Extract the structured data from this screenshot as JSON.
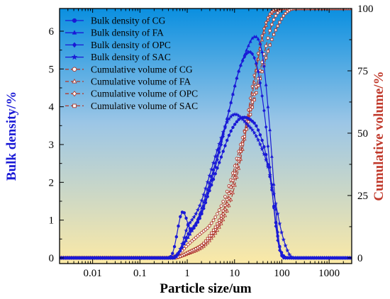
{
  "chart_data": {
    "type": "line",
    "title": "",
    "xlabel": "Particle size/um",
    "ylabel_left": "Bulk density/%",
    "ylabel_right": "Cumulative volume/%",
    "x_scale": "log",
    "xlim": [
      0.002,
      3000
    ],
    "ylim_left": [
      -0.15,
      6.6
    ],
    "ylim_right": [
      -2.3,
      100
    ],
    "x_ticks": [
      0.01,
      0.1,
      1,
      10,
      100,
      1000
    ],
    "x_tick_labels": [
      "0.01",
      "0.1",
      "1",
      "10",
      "100",
      "1000"
    ],
    "y_left_ticks": [
      0,
      1,
      2,
      3,
      4,
      5,
      6
    ],
    "y_left_tick_labels": [
      "0",
      "1",
      "2",
      "3",
      "4",
      "5",
      "6"
    ],
    "y_right_ticks": [
      0,
      25,
      50,
      75,
      100
    ],
    "y_right_tick_labels": [
      "0",
      "25",
      "50",
      "75",
      "100"
    ],
    "legend_position": "top-left",
    "colors": {
      "density": "#1a1ad6",
      "cumulative": "#b03a2e",
      "left_axis_title": "#1a1ad6",
      "right_axis_title": "#c0392b",
      "bg_top": "#0a8fe0",
      "bg_bottom": "#fbe9a6"
    },
    "series": [
      {
        "name": "Bulk density of CG",
        "axis": "left",
        "marker": "circle",
        "points": [
          [
            0.01,
            0
          ],
          [
            0.05,
            0
          ],
          [
            0.2,
            0
          ],
          [
            0.4,
            0
          ],
          [
            0.5,
            0.15
          ],
          [
            0.6,
            0.6
          ],
          [
            0.7,
            1.05
          ],
          [
            0.8,
            1.22
          ],
          [
            0.9,
            1.15
          ],
          [
            1.0,
            0.95
          ],
          [
            1.2,
            0.75
          ],
          [
            1.5,
            0.85
          ],
          [
            2,
            1.15
          ],
          [
            3,
            1.8
          ],
          [
            5,
            2.6
          ],
          [
            8,
            3.3
          ],
          [
            12,
            3.65
          ],
          [
            16,
            3.72
          ],
          [
            22,
            3.65
          ],
          [
            30,
            3.45
          ],
          [
            45,
            2.8
          ],
          [
            60,
            1.9
          ],
          [
            75,
            0.9
          ],
          [
            90,
            0.3
          ],
          [
            110,
            0.05
          ],
          [
            150,
            0
          ],
          [
            1000,
            0
          ],
          [
            3000,
            0
          ]
        ]
      },
      {
        "name": "Bulk density of FA",
        "axis": "left",
        "marker": "triangle",
        "points": [
          [
            0.01,
            0
          ],
          [
            0.1,
            0
          ],
          [
            0.4,
            0
          ],
          [
            0.55,
            0.05
          ],
          [
            0.7,
            0.2
          ],
          [
            1,
            0.5
          ],
          [
            1.5,
            0.9
          ],
          [
            2,
            1.3
          ],
          [
            3,
            2.0
          ],
          [
            5,
            3.0
          ],
          [
            8,
            4.0
          ],
          [
            12,
            4.9
          ],
          [
            18,
            5.5
          ],
          [
            25,
            5.85
          ],
          [
            30,
            5.85
          ],
          [
            40,
            5.3
          ],
          [
            55,
            3.5
          ],
          [
            70,
            1.7
          ],
          [
            85,
            0.5
          ],
          [
            100,
            0.1
          ],
          [
            120,
            0
          ],
          [
            1000,
            0
          ],
          [
            3000,
            0
          ]
        ]
      },
      {
        "name": "Bulk density of OPC",
        "axis": "left",
        "marker": "diamond",
        "points": [
          [
            0.01,
            0
          ],
          [
            0.1,
            0
          ],
          [
            0.5,
            0
          ],
          [
            0.6,
            0.05
          ],
          [
            0.8,
            0.3
          ],
          [
            1,
            0.6
          ],
          [
            1.5,
            0.9
          ],
          [
            2,
            1.2
          ],
          [
            3,
            1.9
          ],
          [
            5,
            2.9
          ],
          [
            8,
            4.0
          ],
          [
            12,
            4.9
          ],
          [
            16,
            5.3
          ],
          [
            20,
            5.45
          ],
          [
            25,
            5.35
          ],
          [
            32,
            4.9
          ],
          [
            45,
            3.6
          ],
          [
            60,
            2.0
          ],
          [
            75,
            0.8
          ],
          [
            90,
            0.2
          ],
          [
            110,
            0
          ],
          [
            1000,
            0
          ],
          [
            3000,
            0
          ]
        ]
      },
      {
        "name": "Bulk density of SAC",
        "axis": "left",
        "marker": "star",
        "points": [
          [
            0.01,
            0
          ],
          [
            0.1,
            0
          ],
          [
            0.5,
            0
          ],
          [
            0.6,
            0.05
          ],
          [
            0.8,
            0.4
          ],
          [
            1,
            0.8
          ],
          [
            1.5,
            1.15
          ],
          [
            2,
            1.5
          ],
          [
            3,
            2.2
          ],
          [
            5,
            3.1
          ],
          [
            7,
            3.6
          ],
          [
            10,
            3.8
          ],
          [
            14,
            3.7
          ],
          [
            18,
            3.55
          ],
          [
            25,
            3.35
          ],
          [
            35,
            3.0
          ],
          [
            50,
            2.45
          ],
          [
            70,
            1.6
          ],
          [
            100,
            0.65
          ],
          [
            140,
            0.12
          ],
          [
            180,
            0
          ],
          [
            1000,
            0
          ],
          [
            3000,
            0
          ]
        ]
      },
      {
        "name": "Cumulative volume of CG",
        "axis": "right",
        "marker": "open-circle",
        "points": [
          [
            0.01,
            0
          ],
          [
            0.4,
            0
          ],
          [
            0.6,
            1
          ],
          [
            0.8,
            3
          ],
          [
            1,
            5
          ],
          [
            1.5,
            8
          ],
          [
            2,
            10
          ],
          [
            3,
            13
          ],
          [
            5,
            20
          ],
          [
            8,
            30
          ],
          [
            12,
            42
          ],
          [
            20,
            57
          ],
          [
            30,
            70
          ],
          [
            45,
            84
          ],
          [
            60,
            93
          ],
          [
            80,
            98
          ],
          [
            110,
            100
          ],
          [
            400,
            100
          ]
        ]
      },
      {
        "name": "Cumulative volume of FA",
        "axis": "right",
        "marker": "open-triangle",
        "points": [
          [
            0.01,
            0
          ],
          [
            0.5,
            0
          ],
          [
            0.7,
            0.5
          ],
          [
            1,
            1.5
          ],
          [
            2,
            4
          ],
          [
            3,
            7
          ],
          [
            5,
            13
          ],
          [
            8,
            22
          ],
          [
            12,
            35
          ],
          [
            18,
            52
          ],
          [
            25,
            68
          ],
          [
            35,
            84
          ],
          [
            50,
            95
          ],
          [
            70,
            99
          ],
          [
            100,
            100
          ],
          [
            400,
            100
          ]
        ]
      },
      {
        "name": "Cumulative volume of OPC",
        "axis": "right",
        "marker": "open-diamond",
        "points": [
          [
            0.01,
            0
          ],
          [
            0.5,
            0
          ],
          [
            0.7,
            0.5
          ],
          [
            1,
            2
          ],
          [
            2,
            5
          ],
          [
            3,
            8
          ],
          [
            5,
            15
          ],
          [
            8,
            25
          ],
          [
            12,
            38
          ],
          [
            18,
            55
          ],
          [
            25,
            71
          ],
          [
            35,
            86
          ],
          [
            50,
            96
          ],
          [
            70,
            99.5
          ],
          [
            100,
            100
          ],
          [
            400,
            100
          ]
        ]
      },
      {
        "name": "Cumulative volume of SAC",
        "axis": "right",
        "marker": "open-square",
        "points": [
          [
            0.01,
            0
          ],
          [
            0.5,
            0
          ],
          [
            0.7,
            0.5
          ],
          [
            1,
            2
          ],
          [
            2,
            5
          ],
          [
            3,
            9
          ],
          [
            5,
            16
          ],
          [
            8,
            27
          ],
          [
            12,
            39
          ],
          [
            20,
            55
          ],
          [
            35,
            72
          ],
          [
            60,
            87
          ],
          [
            100,
            96
          ],
          [
            150,
            99.5
          ],
          [
            250,
            100
          ],
          [
            400,
            100
          ]
        ]
      }
    ]
  }
}
